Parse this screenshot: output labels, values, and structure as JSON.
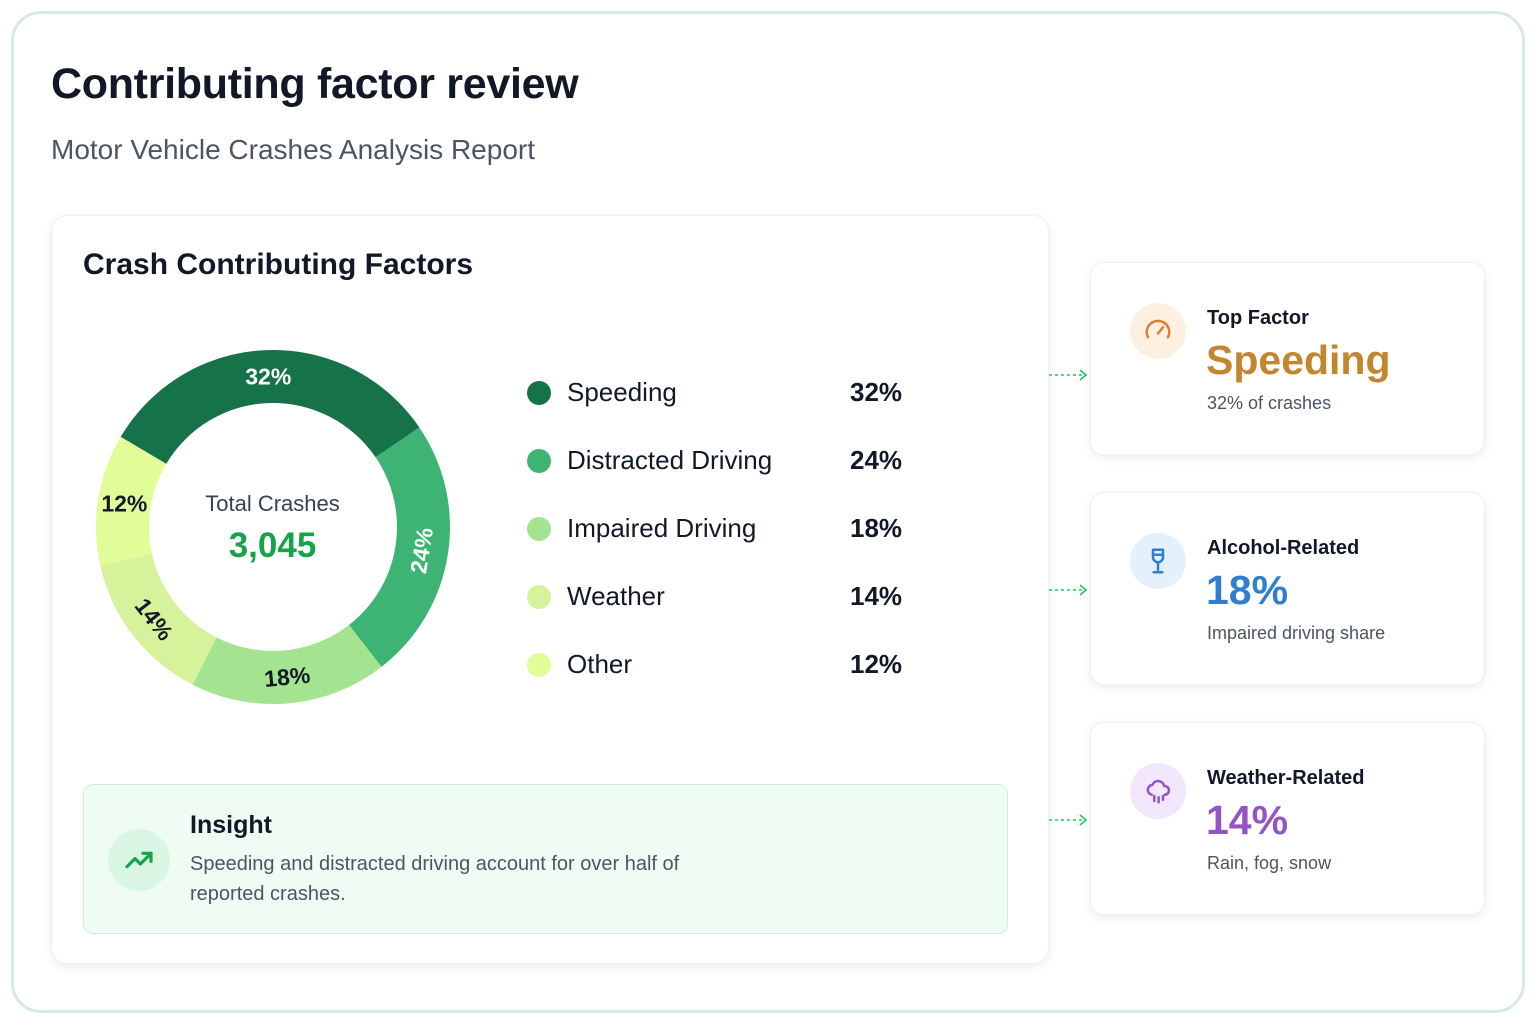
{
  "page": {
    "title": "Contributing factor review",
    "subtitle": "Motor Vehicle Crashes Analysis Report"
  },
  "chart_data": {
    "type": "pie",
    "title": "Crash Contributing Factors",
    "center_label": "Total Crashes",
    "center_value": "3,045",
    "categories": [
      "Speeding",
      "Distracted Driving",
      "Impaired Driving",
      "Weather",
      "Other"
    ],
    "values": [
      32,
      24,
      18,
      14,
      12
    ],
    "value_labels": [
      "32%",
      "24%",
      "18%",
      "14%",
      "12%"
    ],
    "colors": [
      "#167249",
      "#3db474",
      "#a4e390",
      "#d6f39b",
      "#e2fd97"
    ],
    "label_colors": [
      "#ffffff",
      "#ffffff",
      "#111827",
      "#111827",
      "#111827"
    ],
    "legend_position": "right"
  },
  "insight": {
    "title": "Insight",
    "text": "Speeding and distracted driving account for over half of reported crashes.",
    "icon": "trending-up-icon"
  },
  "side_cards": [
    {
      "label": "Top Factor",
      "value": "Speeding",
      "sub": "32% of crashes",
      "icon": "speedometer-icon",
      "accent": "#c2862f",
      "icon_bg": "#fdf0e1"
    },
    {
      "label": "Alcohol-Related",
      "value": "18%",
      "sub": "Impaired driving share",
      "icon": "wine-glass-icon",
      "accent": "#2f7fd0",
      "icon_bg": "#e4f0fb"
    },
    {
      "label": "Weather-Related",
      "value": "14%",
      "sub": "Rain, fog, snow",
      "icon": "rain-cloud-icon",
      "accent": "#9354c6",
      "icon_bg": "#f1e6fb"
    }
  ]
}
